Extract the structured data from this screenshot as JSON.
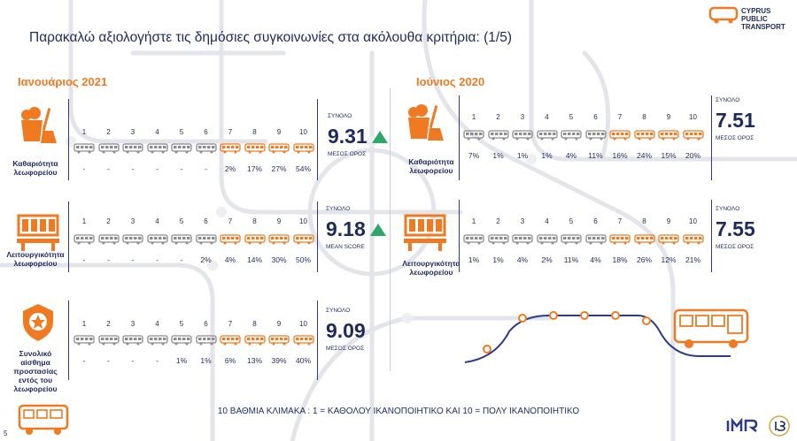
{
  "title": "Παρακαλώ αξιολογήστε τις δημόσιες συγκοινωνίες στα ακόλουθα κριτήρια: (1/5)",
  "logo": {
    "lines": [
      "CYPRUS",
      "PUBLIC",
      "TRANSPORT"
    ]
  },
  "footer": "10 ΒΑΘΜΙΑ ΚΛΙΜΑΚΑ : 1 = ΚΑΘΟΛΟΥ ΙΚΑΝΟΠΟΙΗΤΙΚΟ ΚΑΙ 10 = ΠΟΛΥ ΙΚΑΝΟΠΟΙΗΤΙΚΟ",
  "page_number": "5",
  "colors": {
    "accent": "#f07a22",
    "navy": "#1f2a5c",
    "grey": "#8c8c8c",
    "up": "#2fa76b"
  },
  "scale": [
    "1",
    "2",
    "3",
    "4",
    "5",
    "6",
    "7",
    "8",
    "9",
    "10"
  ],
  "chart_data": [
    {
      "type": "table",
      "period": "Ιανουάριος 2021",
      "criterion": "Καθαριότητα λεωφορείου",
      "icon": "cleaning-bucket-icon",
      "categories": [
        "1",
        "2",
        "3",
        "4",
        "5",
        "6",
        "7",
        "8",
        "9",
        "10"
      ],
      "values": [
        "-",
        "-",
        "-",
        "-",
        "-",
        "-",
        "2%",
        "17%",
        "27%",
        "54%"
      ],
      "total_label": "ΣΥΝΟΛΟ",
      "score": "9.31",
      "score_label": "ΜΕΣΟΣ ΟΡΟΣ",
      "trend": "up"
    },
    {
      "type": "table",
      "period": "Ιανουάριος 2021",
      "criterion": "Λειτουργικότητα λεωφορείου",
      "icon": "seats-icon",
      "categories": [
        "1",
        "2",
        "3",
        "4",
        "5",
        "6",
        "7",
        "8",
        "9",
        "10"
      ],
      "values": [
        "-",
        "-",
        "-",
        "-",
        "-",
        "2%",
        "4%",
        "14%",
        "30%",
        "50%"
      ],
      "total_label": "ΣΥΝΟΛΟ",
      "score": "9.18",
      "score_label": "MEAN SCORE",
      "trend": "up"
    },
    {
      "type": "table",
      "period": "Ιανουάριος 2021",
      "criterion": "Συνολικό αίσθημα προστασίας εντός του λεωφορείου",
      "icon": "security-badge-icon",
      "categories": [
        "1",
        "2",
        "3",
        "4",
        "5",
        "6",
        "7",
        "8",
        "9",
        "10"
      ],
      "values": [
        "-",
        "-",
        "-",
        "-",
        "1%",
        "1%",
        "6%",
        "13%",
        "39%",
        "40%"
      ],
      "total_label": "ΣΥΝΟΛΟ",
      "score": "9.09",
      "score_label": "ΜΕΣΟΣ ΟΡΟΣ",
      "trend": "none"
    },
    {
      "type": "table",
      "period": "Ιούνιος 2020",
      "criterion": "Καθαριότητα λεωφορείου",
      "icon": "cleaning-bucket-icon",
      "categories": [
        "1",
        "2",
        "3",
        "4",
        "5",
        "6",
        "7",
        "8",
        "9",
        "10"
      ],
      "values": [
        "7%",
        "1%",
        "1%",
        "1%",
        "4%",
        "11%",
        "16%",
        "24%",
        "15%",
        "20%"
      ],
      "total_label": "ΣΥΝΟΛΟ",
      "score": "7.51",
      "score_label": "ΜΕΣΟΣ ΟΡΟΣ",
      "trend": "none"
    },
    {
      "type": "table",
      "period": "Ιούνιος 2020",
      "criterion": "Λειτουργικότητα λεωφορείου",
      "icon": "seats-icon",
      "categories": [
        "1",
        "2",
        "3",
        "4",
        "5",
        "6",
        "7",
        "8",
        "9",
        "10"
      ],
      "values": [
        "1%",
        "1%",
        "4%",
        "2%",
        "11%",
        "4%",
        "18%",
        "26%",
        "12%",
        "21%"
      ],
      "total_label": "ΣΥΝΟΛΟ",
      "score": "7.55",
      "score_label": "ΜΕΣΟΣ ΟΡΟΣ",
      "trend": "none"
    }
  ]
}
